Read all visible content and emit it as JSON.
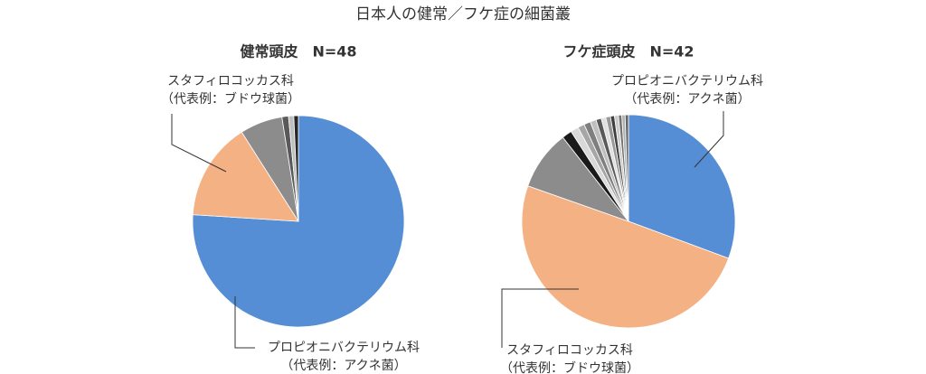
{
  "title": "日本人の健常／フケ症の細菌叢",
  "chart_data": [
    {
      "type": "pie",
      "title": "健常頭皮　N=48",
      "values": [
        76,
        15,
        6.5,
        1,
        0.8,
        0.7
      ],
      "colors": [
        "#558ed5",
        "#f4b183",
        "#8c8c8c",
        "#595959",
        "#bfbfbf",
        "#262626"
      ],
      "annotations": [
        [
          "プロピオニバクテリウム科",
          "（代表例：アクネ菌）"
        ],
        [
          "スタフィロコッカス科",
          "（代表例：ブドウ球菌）"
        ]
      ]
    },
    {
      "type": "pie",
      "title": "フケ症頭皮　N=42",
      "values": [
        30.5,
        49.5,
        9,
        1.5,
        1.2,
        1,
        1,
        0.9,
        0.8,
        0.7,
        0.7,
        0.6,
        0.6,
        0.5,
        0.5,
        0.5
      ],
      "colors": [
        "#558ed5",
        "#f4b183",
        "#8c8c8c",
        "#1a1a1a",
        "#d9d9d9",
        "#a6a6a6",
        "#7f7f7f",
        "#bfbfbf",
        "#595959",
        "#e0e0e0",
        "#999999",
        "#404040",
        "#cccccc",
        "#737373",
        "#b3b3b3",
        "#666666"
      ],
      "annotations": [
        [
          "プロピオニバクテリウム科",
          "（代表例：アクネ菌）"
        ],
        [
          "スタフィロコッカス科",
          "（代表例：ブドウ球菌）"
        ]
      ]
    }
  ]
}
